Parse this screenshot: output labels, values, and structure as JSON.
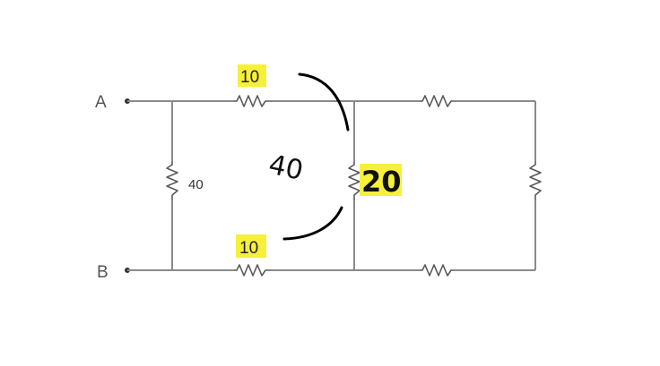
{
  "nodes": {
    "a": "A",
    "b": "B"
  },
  "resistors": {
    "shunt_left": "40",
    "top_left": "10",
    "bottom_left": "10",
    "middle": "20"
  },
  "annotations": {
    "handwritten_combined": "40",
    "highlight_color": "#f6f03a"
  }
}
